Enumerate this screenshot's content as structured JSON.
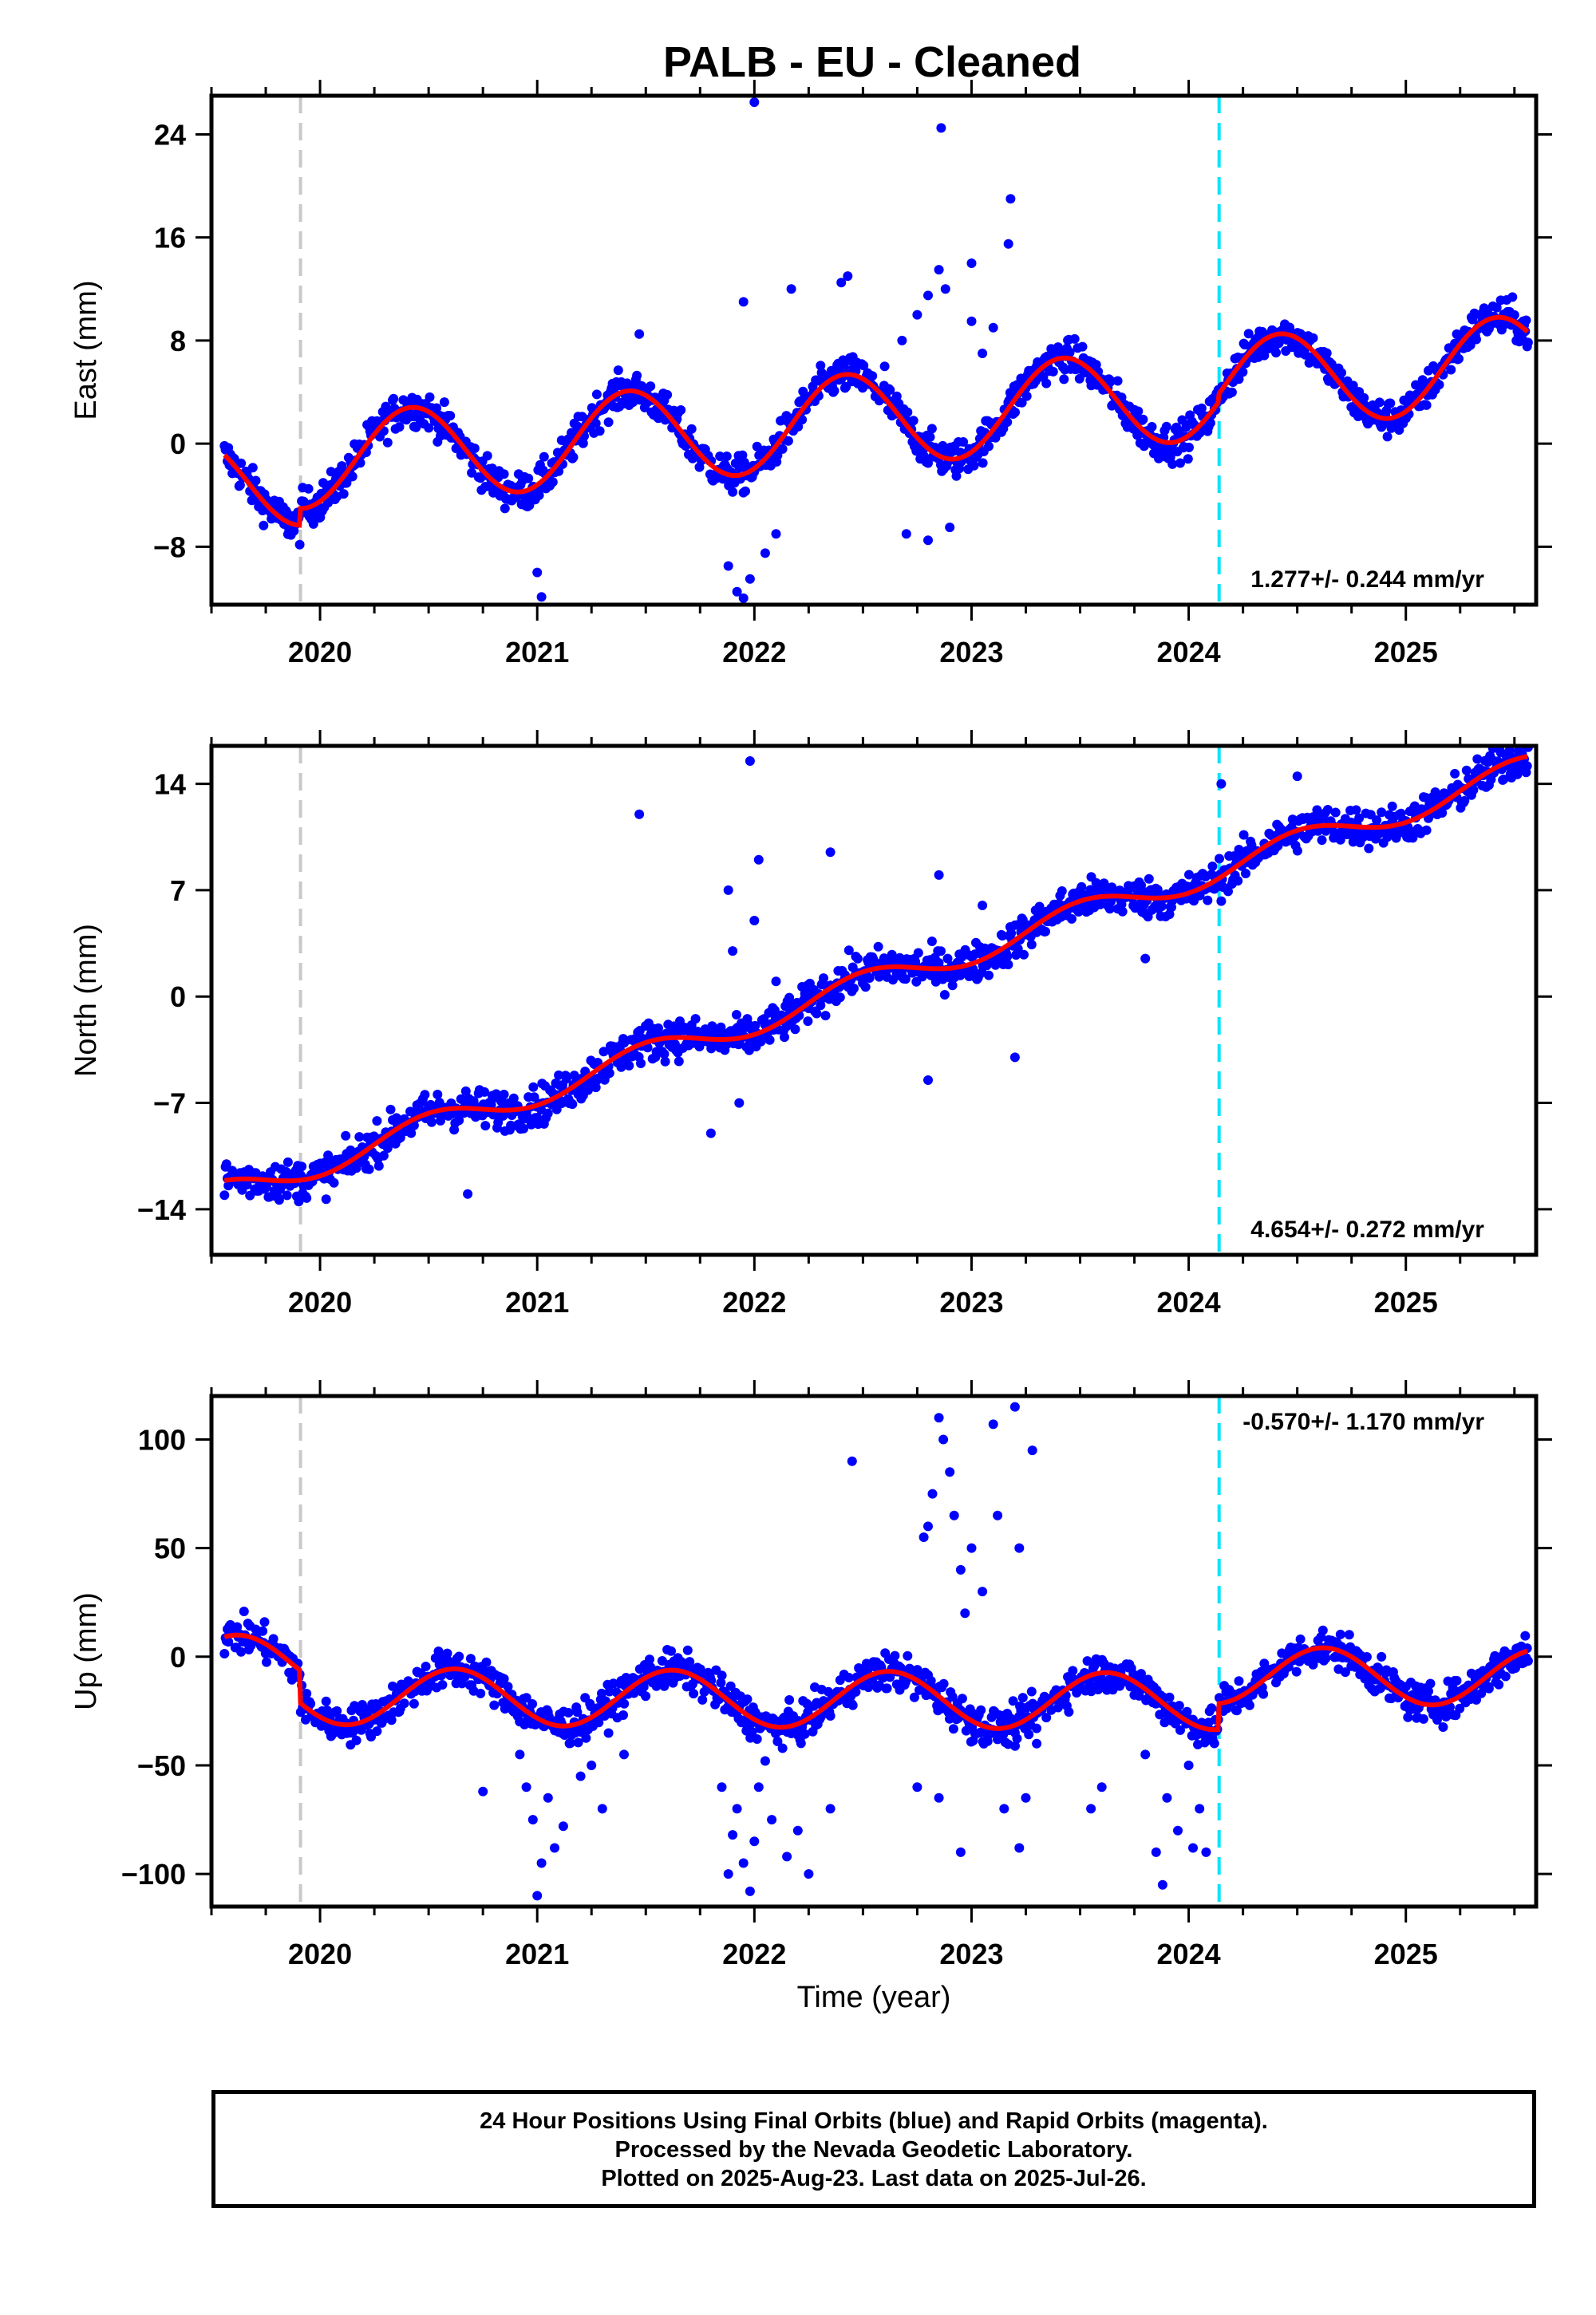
{
  "chart_data": {
    "type": "scatter",
    "title": "PALB  - EU - Cleaned",
    "xlabel": "Time (year)",
    "xlim": [
      2019.5,
      2025.6
    ],
    "x_ticks": [
      "2020",
      "2021",
      "2022",
      "2023",
      "2024",
      "2025"
    ],
    "vlines": [
      {
        "x": 2019.91,
        "color": "#c8c8c8",
        "style": "dashed"
      },
      {
        "x": 2024.14,
        "color": "#00e5ff",
        "style": "dashed"
      }
    ],
    "series_colors": {
      "final": "#0000ff",
      "rapid": "#ff00ff",
      "model": "#ff0000"
    },
    "panels": [
      {
        "id": "east",
        "ylabel": "East (mm)",
        "ylim": [
          -12.5,
          27
        ],
        "yticks": [
          -8,
          0,
          8,
          16,
          24
        ],
        "ytick_labels": [
          "−8",
          "0",
          "8",
          "16",
          "24"
        ],
        "rate_label": "1.277+/- 0.244 mm/yr",
        "rate_position": "bottom-right",
        "model": {
          "trend": 1.277,
          "offset": -3.2,
          "amplitude": 3.6,
          "phase": 2020.42,
          "steps": [
            {
              "x": 2019.91,
              "dy": 1.3
            },
            {
              "x": 2024.14,
              "dy": 0.6
            }
          ]
        },
        "scatter_sigma": 1.0,
        "outliers": [
          [
            2021.0,
            -10.0
          ],
          [
            2021.02,
            -11.9
          ],
          [
            2021.88,
            -9.5
          ],
          [
            2021.92,
            -11.5
          ],
          [
            2021.95,
            -12.0
          ],
          [
            2021.98,
            -10.5
          ],
          [
            2022.0,
            26.5
          ],
          [
            2022.05,
            -8.5
          ],
          [
            2022.1,
            -7.0
          ],
          [
            2021.95,
            11.0
          ],
          [
            2022.17,
            12.0
          ],
          [
            2022.4,
            12.5
          ],
          [
            2022.43,
            13.0
          ],
          [
            2022.68,
            8.0
          ],
          [
            2022.75,
            10.0
          ],
          [
            2022.8,
            11.5
          ],
          [
            2022.85,
            13.5
          ],
          [
            2022.88,
            12.0
          ],
          [
            2022.86,
            24.5
          ],
          [
            2023.0,
            14.0
          ],
          [
            2023.18,
            19.0
          ],
          [
            2023.17,
            15.5
          ],
          [
            2023.0,
            9.5
          ],
          [
            2023.1,
            9.0
          ],
          [
            2022.7,
            -7.0
          ],
          [
            2022.8,
            -7.5
          ],
          [
            2022.9,
            -6.5
          ],
          [
            2023.05,
            7.0
          ],
          [
            2021.47,
            8.5
          ],
          [
            2023.6,
            5.0
          ],
          [
            2022.6,
            6.0
          ]
        ]
      },
      {
        "id": "north",
        "ylabel": "North (mm)",
        "ylim": [
          -17,
          16.5
        ],
        "yticks": [
          -14,
          -7,
          0,
          7,
          14
        ],
        "ytick_labels": [
          "−14",
          "−7",
          "0",
          "7",
          "14"
        ],
        "rate_label": "4.654+/- 0.272 mm/yr",
        "rate_position": "bottom-right",
        "model": {
          "trend": 4.654,
          "offset": -13.0,
          "amplitude": 0.9,
          "phase": 2020.5,
          "steps": []
        },
        "scatter_sigma": 0.9,
        "outliers": [
          [
            2021.47,
            12.0
          ],
          [
            2021.98,
            15.5
          ],
          [
            2022.02,
            9.0
          ],
          [
            2022.35,
            9.5
          ],
          [
            2021.88,
            7.0
          ],
          [
            2021.9,
            3.0
          ],
          [
            2022.0,
            5.0
          ],
          [
            2022.1,
            1.0
          ],
          [
            2022.85,
            8.0
          ],
          [
            2023.05,
            6.0
          ],
          [
            2023.2,
            -4.0
          ],
          [
            2022.8,
            -5.5
          ],
          [
            2023.8,
            2.5
          ],
          [
            2024.15,
            14.0
          ],
          [
            2021.93,
            -7.0
          ],
          [
            2021.8,
            -9.0
          ],
          [
            2020.68,
            -13.0
          ],
          [
            2024.5,
            14.5
          ]
        ]
      },
      {
        "id": "up",
        "ylabel": "Up (mm)",
        "ylim": [
          -115,
          120
        ],
        "yticks": [
          -100,
          -50,
          0,
          50,
          100
        ],
        "ytick_labels": [
          "−100",
          "−50",
          "0",
          "50",
          "100"
        ],
        "rate_label": "-0.570+/- 1.170 mm/yr",
        "rate_position": "top-right",
        "model": {
          "trend": -0.57,
          "offset": -3.0,
          "amplitude": 13.0,
          "phase": 2020.62,
          "steps": [
            {
              "x": 2019.91,
              "dy": -15.0
            },
            {
              "x": 2024.14,
              "dy": 12.0
            }
          ]
        },
        "scatter_sigma": 6.0,
        "outliers": [
          [
            2020.75,
            -62.0
          ],
          [
            2020.92,
            -45.0
          ],
          [
            2020.95,
            -60.0
          ],
          [
            2020.98,
            -75.0
          ],
          [
            2021.0,
            -110.0
          ],
          [
            2021.02,
            -95.0
          ],
          [
            2021.05,
            -65.0
          ],
          [
            2021.08,
            -88.0
          ],
          [
            2021.12,
            -78.0
          ],
          [
            2021.2,
            -55.0
          ],
          [
            2021.25,
            -50.0
          ],
          [
            2021.3,
            -70.0
          ],
          [
            2021.4,
            -45.0
          ],
          [
            2021.85,
            -60.0
          ],
          [
            2021.88,
            -100.0
          ],
          [
            2021.9,
            -82.0
          ],
          [
            2021.92,
            -70.0
          ],
          [
            2021.95,
            -95.0
          ],
          [
            2021.98,
            -108.0
          ],
          [
            2022.0,
            -85.0
          ],
          [
            2022.02,
            -60.0
          ],
          [
            2022.05,
            -48.0
          ],
          [
            2022.08,
            -75.0
          ],
          [
            2022.15,
            -92.0
          ],
          [
            2022.2,
            -80.0
          ],
          [
            2022.25,
            -100.0
          ],
          [
            2022.35,
            -70.0
          ],
          [
            2022.45,
            90.0
          ],
          [
            2022.75,
            -60.0
          ],
          [
            2022.78,
            55.0
          ],
          [
            2022.8,
            60.0
          ],
          [
            2022.82,
            75.0
          ],
          [
            2022.85,
            110.0
          ],
          [
            2022.87,
            100.0
          ],
          [
            2022.9,
            85.0
          ],
          [
            2022.92,
            65.0
          ],
          [
            2022.95,
            40.0
          ],
          [
            2022.97,
            20.0
          ],
          [
            2023.0,
            50.0
          ],
          [
            2023.05,
            30.0
          ],
          [
            2023.1,
            107.0
          ],
          [
            2023.12,
            65.0
          ],
          [
            2023.2,
            115.0
          ],
          [
            2023.22,
            50.0
          ],
          [
            2023.28,
            95.0
          ],
          [
            2022.85,
            -65.0
          ],
          [
            2022.95,
            -90.0
          ],
          [
            2023.15,
            -70.0
          ],
          [
            2023.2,
            -35.0
          ],
          [
            2023.25,
            -65.0
          ],
          [
            2023.22,
            -88.0
          ],
          [
            2023.3,
            -40.0
          ],
          [
            2023.55,
            -70.0
          ],
          [
            2023.6,
            -60.0
          ],
          [
            2023.8,
            -45.0
          ],
          [
            2023.85,
            -90.0
          ],
          [
            2023.88,
            -105.0
          ],
          [
            2023.9,
            -65.0
          ],
          [
            2023.95,
            -80.0
          ],
          [
            2024.0,
            -50.0
          ],
          [
            2024.02,
            -88.0
          ],
          [
            2024.05,
            -70.0
          ],
          [
            2024.08,
            -90.0
          ]
        ]
      }
    ],
    "notes": []
  },
  "footer": {
    "line1": "24 Hour Positions Using Final Orbits (blue) and Rapid Orbits (magenta).",
    "line2": "Processed by the Nevada Geodetic Laboratory.",
    "line3": "Plotted on 2025-Aug-23. Last data on 2025-Jul-26."
  }
}
